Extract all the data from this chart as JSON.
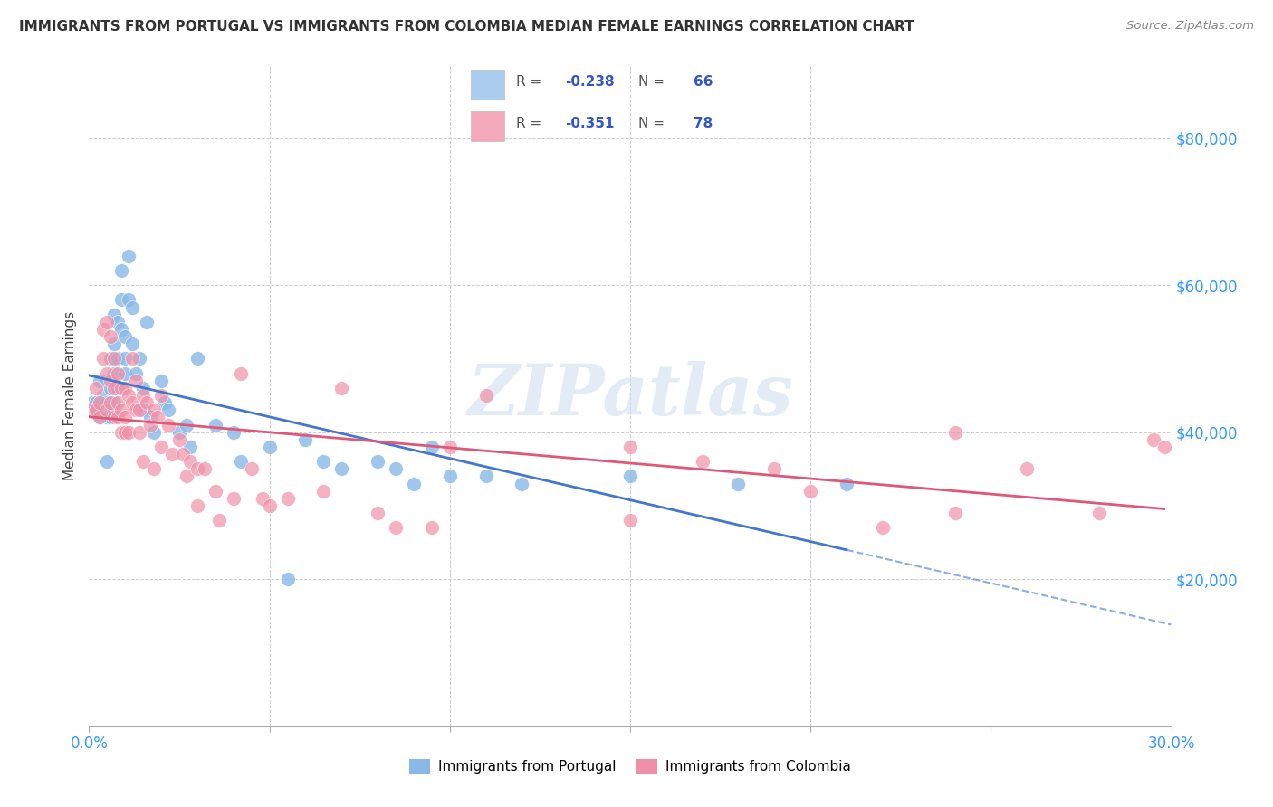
{
  "title": "IMMIGRANTS FROM PORTUGAL VS IMMIGRANTS FROM COLOMBIA MEDIAN FEMALE EARNINGS CORRELATION CHART",
  "source": "Source: ZipAtlas.com",
  "ylabel": "Median Female Earnings",
  "xlim": [
    0.0,
    0.3
  ],
  "ylim": [
    0,
    90000
  ],
  "yticks": [
    20000,
    40000,
    60000,
    80000
  ],
  "ytick_labels": [
    "$20,000",
    "$40,000",
    "$60,000",
    "$80,000"
  ],
  "color_portugal": "#8ab8e8",
  "color_colombia": "#f090a8",
  "trendline_portugal_color": "#4477cc",
  "trendline_colombia_color": "#e05878",
  "watermark": "ZIPatlas",
  "legend_r1": "-0.238",
  "legend_n1": "66",
  "legend_r2": "-0.351",
  "legend_n2": "78",
  "legend_color1": "#aaccee",
  "legend_color2": "#f4aabb",
  "portugal_x": [
    0.001,
    0.002,
    0.002,
    0.003,
    0.003,
    0.003,
    0.004,
    0.004,
    0.005,
    0.005,
    0.005,
    0.005,
    0.006,
    0.006,
    0.006,
    0.006,
    0.007,
    0.007,
    0.007,
    0.007,
    0.007,
    0.008,
    0.008,
    0.008,
    0.009,
    0.009,
    0.009,
    0.01,
    0.01,
    0.01,
    0.011,
    0.011,
    0.012,
    0.012,
    0.013,
    0.014,
    0.015,
    0.015,
    0.016,
    0.017,
    0.018,
    0.02,
    0.021,
    0.022,
    0.025,
    0.027,
    0.028,
    0.03,
    0.035,
    0.04,
    0.042,
    0.05,
    0.055,
    0.06,
    0.065,
    0.07,
    0.08,
    0.085,
    0.09,
    0.095,
    0.1,
    0.11,
    0.12,
    0.15,
    0.18,
    0.21
  ],
  "portugal_y": [
    44000,
    44000,
    43000,
    47000,
    44000,
    42000,
    45000,
    43000,
    47000,
    44000,
    42000,
    36000,
    50000,
    46000,
    44000,
    42000,
    56000,
    52000,
    48000,
    44000,
    43000,
    55000,
    50000,
    46000,
    62000,
    58000,
    54000,
    53000,
    50000,
    48000,
    64000,
    58000,
    57000,
    52000,
    48000,
    50000,
    46000,
    43000,
    55000,
    42000,
    40000,
    47000,
    44000,
    43000,
    40000,
    41000,
    38000,
    50000,
    41000,
    40000,
    36000,
    38000,
    20000,
    39000,
    36000,
    35000,
    36000,
    35000,
    33000,
    38000,
    34000,
    34000,
    33000,
    34000,
    33000,
    33000
  ],
  "colombia_x": [
    0.001,
    0.002,
    0.002,
    0.003,
    0.003,
    0.004,
    0.004,
    0.005,
    0.005,
    0.005,
    0.006,
    0.006,
    0.006,
    0.007,
    0.007,
    0.007,
    0.008,
    0.008,
    0.008,
    0.009,
    0.009,
    0.009,
    0.01,
    0.01,
    0.01,
    0.011,
    0.011,
    0.012,
    0.012,
    0.013,
    0.013,
    0.014,
    0.014,
    0.015,
    0.015,
    0.016,
    0.017,
    0.018,
    0.018,
    0.019,
    0.02,
    0.02,
    0.022,
    0.023,
    0.025,
    0.026,
    0.027,
    0.028,
    0.03,
    0.03,
    0.032,
    0.035,
    0.036,
    0.04,
    0.042,
    0.045,
    0.048,
    0.05,
    0.055,
    0.065,
    0.07,
    0.08,
    0.085,
    0.095,
    0.1,
    0.11,
    0.15,
    0.17,
    0.19,
    0.2,
    0.22,
    0.24,
    0.26,
    0.28,
    0.295,
    0.298,
    0.15,
    0.24
  ],
  "colombia_y": [
    43000,
    46000,
    43000,
    44000,
    42000,
    54000,
    50000,
    55000,
    48000,
    43000,
    53000,
    47000,
    44000,
    50000,
    46000,
    42000,
    48000,
    44000,
    42000,
    46000,
    43000,
    40000,
    46000,
    42000,
    40000,
    45000,
    40000,
    50000,
    44000,
    47000,
    43000,
    43000,
    40000,
    45000,
    36000,
    44000,
    41000,
    43000,
    35000,
    42000,
    45000,
    38000,
    41000,
    37000,
    39000,
    37000,
    34000,
    36000,
    35000,
    30000,
    35000,
    32000,
    28000,
    31000,
    48000,
    35000,
    31000,
    30000,
    31000,
    32000,
    46000,
    29000,
    27000,
    27000,
    38000,
    45000,
    38000,
    36000,
    35000,
    32000,
    27000,
    29000,
    35000,
    29000,
    39000,
    38000,
    28000,
    40000
  ]
}
